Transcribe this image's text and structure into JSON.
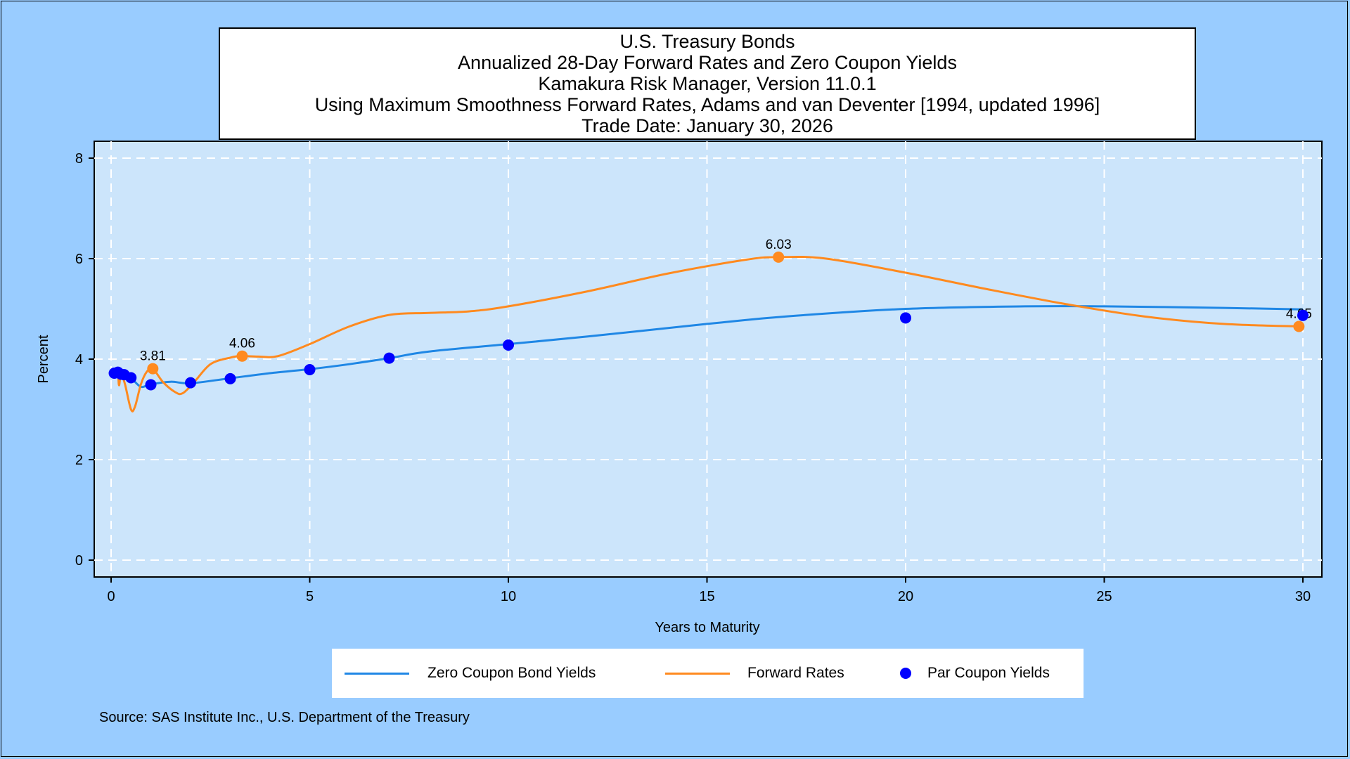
{
  "title_lines": [
    "U.S. Treasury Bonds",
    "Annualized 28-Day Forward Rates and Zero Coupon Yields",
    "Kamakura Risk Manager, Version 11.0.1",
    "Using Maximum Smoothness Forward Rates, Adams and van Deventer [1994, updated 1996]",
    "Trade Date: January 30, 2026"
  ],
  "source": "Source: SAS Institute Inc., U.S. Department of the Treasury",
  "colors": {
    "background": "#99ccff",
    "plot_area": "#cce5fb",
    "zero_coupon": "#1f87e5",
    "forward": "#ff8a1f",
    "par": "#0000ff"
  },
  "chart_data": {
    "type": "line",
    "xlabel": "Years to Maturity",
    "ylabel": "Percent",
    "xlim": [
      0,
      30
    ],
    "ylim": [
      0,
      8
    ],
    "x_ticks": [
      "0",
      "5",
      "10",
      "15",
      "20",
      "25",
      "30"
    ],
    "y_ticks": [
      "0",
      "2",
      "4",
      "6",
      "8"
    ],
    "grid": true,
    "legend_position": "bottom",
    "legend": [
      "Zero Coupon Bond Yields",
      "Forward Rates",
      "Par Coupon Yields"
    ],
    "series": [
      {
        "name": "Zero Coupon Bond Yields",
        "kind": "line",
        "x": [
          0.08,
          0.17,
          0.25,
          0.5,
          0.75,
          1,
          1.5,
          2,
          3,
          4,
          5,
          6,
          7,
          8,
          10,
          12,
          15,
          17,
          20,
          23,
          25,
          28,
          30
        ],
        "y": [
          3.72,
          3.71,
          3.69,
          3.62,
          3.45,
          3.5,
          3.55,
          3.52,
          3.62,
          3.72,
          3.8,
          3.9,
          4.02,
          4.15,
          4.3,
          4.45,
          4.7,
          4.85,
          5.0,
          5.05,
          5.05,
          5.02,
          4.99
        ]
      },
      {
        "name": "Forward Rates",
        "kind": "line",
        "x": [
          0.08,
          0.17,
          0.2,
          0.25,
          0.35,
          0.5,
          0.6,
          0.75,
          0.9,
          1.05,
          1.3,
          1.6,
          1.8,
          2.1,
          2.5,
          3.0,
          3.3,
          3.7,
          4.2,
          5,
          6,
          7,
          8,
          9,
          10,
          12,
          14,
          16,
          16.8,
          18,
          20,
          22,
          24,
          26,
          28,
          30
        ],
        "y": [
          3.72,
          3.72,
          3.48,
          3.7,
          3.5,
          3.0,
          3.05,
          3.5,
          3.75,
          3.81,
          3.55,
          3.35,
          3.32,
          3.55,
          3.9,
          4.03,
          4.06,
          4.05,
          4.06,
          4.3,
          4.65,
          4.88,
          4.92,
          4.95,
          5.05,
          5.35,
          5.7,
          5.98,
          6.03,
          6.0,
          5.72,
          5.4,
          5.1,
          4.85,
          4.7,
          4.65
        ]
      },
      {
        "name": "Par Coupon Yields",
        "kind": "scatter",
        "x": [
          0.08,
          0.17,
          0.25,
          0.33,
          0.5,
          1,
          2,
          3,
          5,
          7,
          10,
          20,
          30
        ],
        "y": [
          3.72,
          3.74,
          3.7,
          3.69,
          3.63,
          3.49,
          3.53,
          3.61,
          3.79,
          4.02,
          4.28,
          4.82,
          4.87
        ]
      }
    ],
    "forward_markers": {
      "x": [
        1.05,
        3.3,
        16.8,
        29.9
      ],
      "y": [
        3.81,
        4.06,
        6.03,
        4.65
      ],
      "labels": [
        "3.81",
        "4.06",
        "6.03",
        "4.65"
      ]
    }
  }
}
